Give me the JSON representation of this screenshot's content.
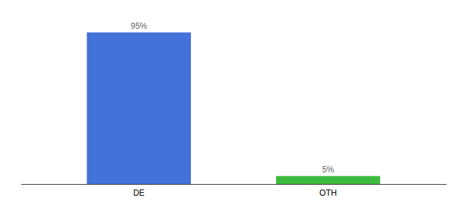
{
  "chart_data": {
    "type": "bar",
    "categories": [
      "DE",
      "OTH"
    ],
    "values": [
      95,
      5
    ],
    "value_labels": [
      "95%",
      "5%"
    ],
    "colors": [
      "#4472db",
      "#3dba3d"
    ],
    "ylim": [
      0,
      105
    ],
    "data_labels": true,
    "tick_labels": "x"
  }
}
